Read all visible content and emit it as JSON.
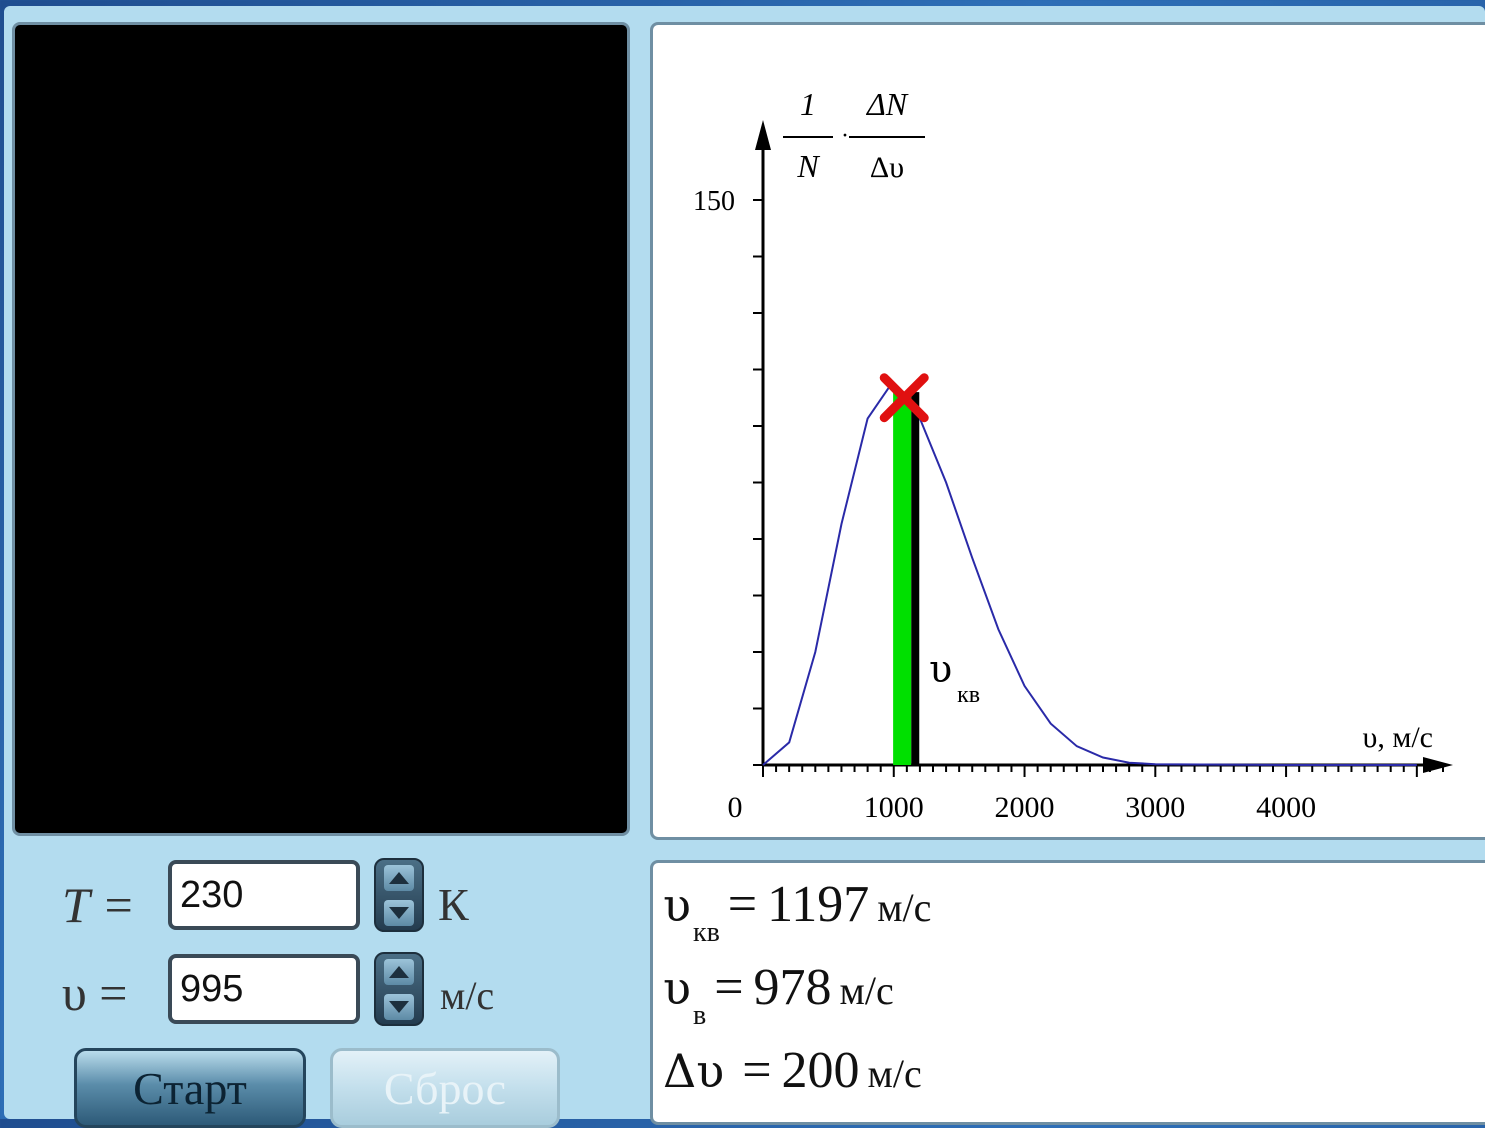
{
  "controls": {
    "temperature": {
      "label": "T =",
      "value": "230",
      "unit": "К"
    },
    "velocity": {
      "label": "υ =",
      "value": "995",
      "unit": "м/с"
    },
    "start_label": "Старт",
    "reset_label": "Сброс"
  },
  "results": {
    "v_rms": {
      "symbol": "υ",
      "sub": "кв",
      "eq": "=",
      "value": "1197",
      "unit": "м/с"
    },
    "v_prob": {
      "symbol": "υ",
      "sub": "в",
      "eq": "=",
      "value": "978",
      "unit": "м/с"
    },
    "dv": {
      "symbol": "Δυ",
      "sub": "",
      "eq": "=",
      "value": "200",
      "unit": "м/с"
    }
  },
  "colors": {
    "curve": "#2a2aa8",
    "bar": "#00e000",
    "marker": "#e01010"
  },
  "chart_data": {
    "type": "line",
    "ylabel_top_left": "1",
    "ylabel_bottom_left": "N",
    "ylabel_top_right": "ΔN",
    "ylabel_bottom_right": "Δυ",
    "xlabel": "υ, м/с",
    "curve_label": "υ",
    "curve_label_sub": "кв",
    "x_ticks": [
      0,
      1000,
      2000,
      3000,
      4000
    ],
    "y_ticks": [
      150
    ],
    "xlim": [
      0,
      5200
    ],
    "ylim": [
      0,
      150
    ],
    "series": [
      {
        "x": [
          0,
          200,
          400,
          600,
          800,
          978,
          1000,
          1200,
          1400,
          1600,
          1800,
          2000,
          2200,
          2400,
          2600,
          2800,
          3000,
          4000,
          5000
        ],
        "y": [
          0,
          6,
          30,
          64,
          92,
          101,
          100,
          92,
          75,
          55,
          36,
          21,
          11,
          5,
          2,
          0.6,
          0.2,
          0,
          0
        ]
      }
    ],
    "bar": {
      "x_start": 995,
      "x_end": 1195,
      "y": 99
    },
    "marker": {
      "x": 1080,
      "y": 97.5
    }
  }
}
